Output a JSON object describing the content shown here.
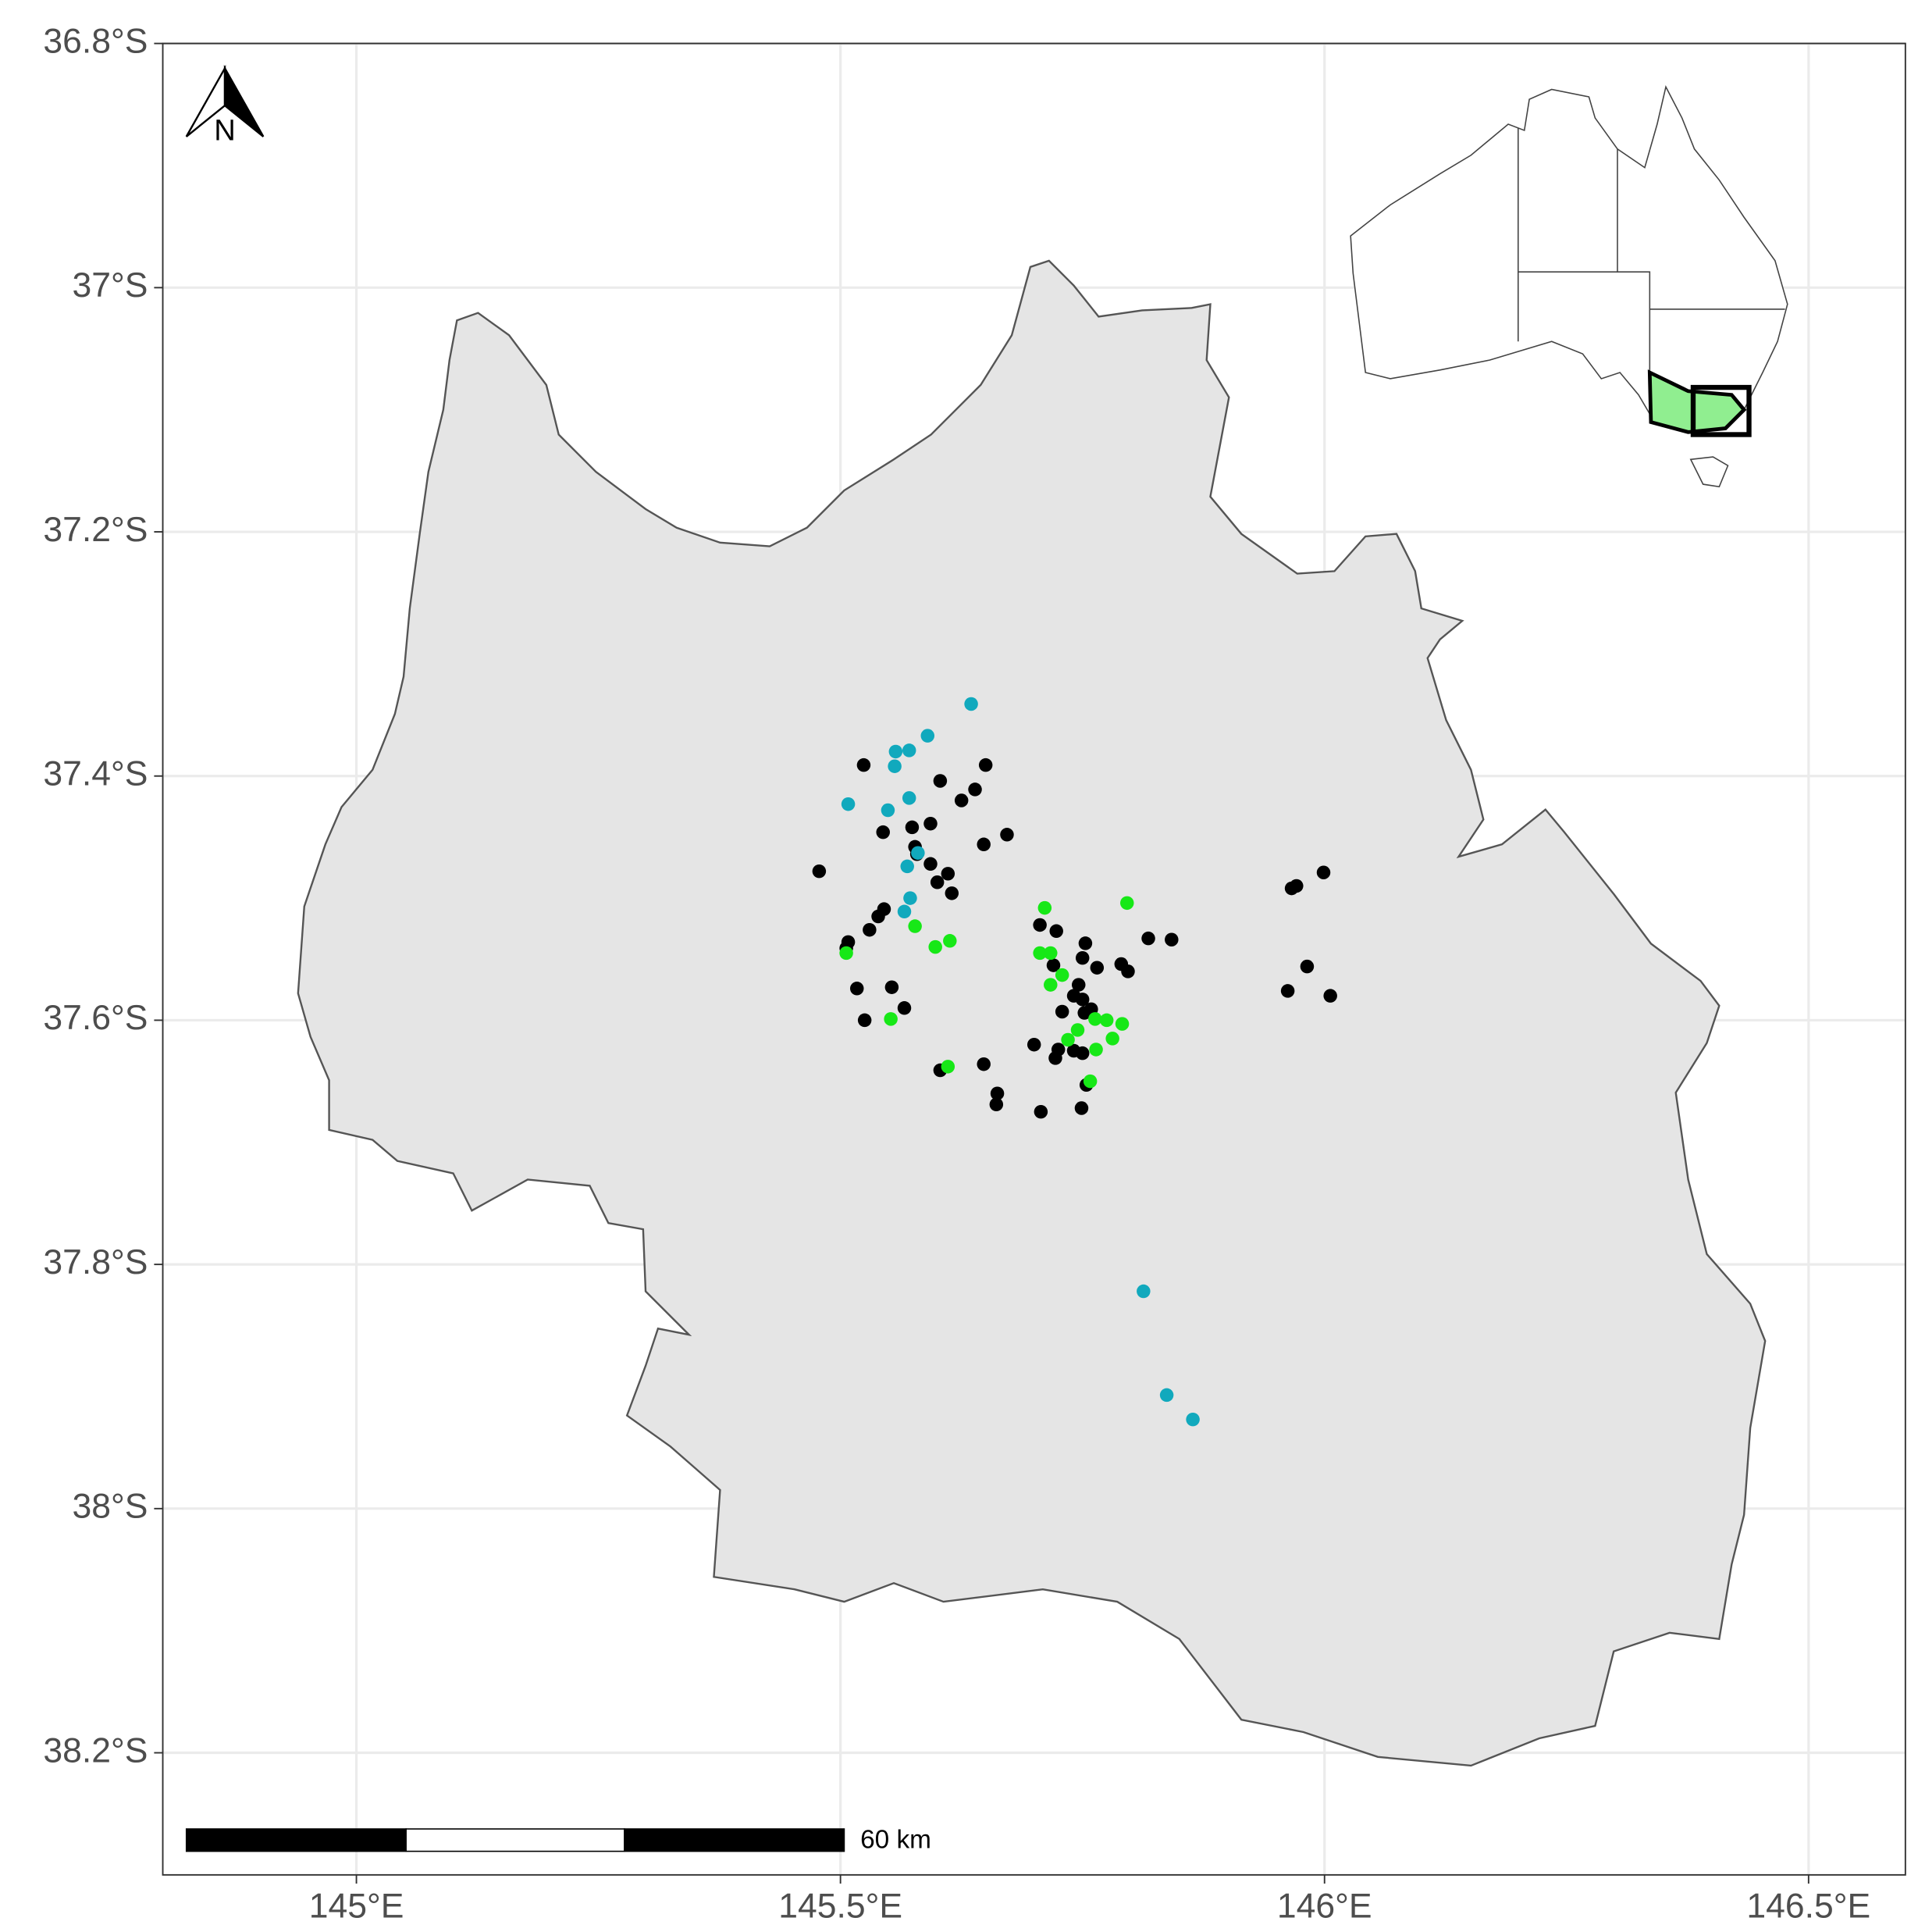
{
  "chart_data": {
    "type": "scatter",
    "xlim": [
      144.8,
      146.6
    ],
    "ylim": [
      -38.3,
      -36.8
    ],
    "xticks": [
      {
        "value": 145,
        "label": "145°E"
      },
      {
        "value": 145.5,
        "label": "145.5°E"
      },
      {
        "value": 146,
        "label": "146°E"
      },
      {
        "value": 146.5,
        "label": "146.5°E"
      }
    ],
    "yticks": [
      {
        "value": -36.8,
        "label": "36.8°S"
      },
      {
        "value": -37,
        "label": "37°S"
      },
      {
        "value": -37.2,
        "label": "37.2°S"
      },
      {
        "value": -37.4,
        "label": "37.4°S"
      },
      {
        "value": -37.6,
        "label": "37.6°S"
      },
      {
        "value": -37.8,
        "label": "37.8°S"
      },
      {
        "value": -38,
        "label": "38°S"
      },
      {
        "value": -38.2,
        "label": "38.2°S"
      }
    ],
    "grid": true,
    "annotations": {
      "north": "N",
      "scale_bar": "60 km"
    },
    "series": [
      {
        "color": "#000000",
        "x": [
          145.524,
          145.65,
          145.603,
          145.639,
          145.625,
          145.593,
          145.574,
          145.544,
          145.672,
          145.577,
          145.648,
          145.579,
          145.593,
          145.478,
          145.611,
          145.6,
          145.615,
          145.999,
          145.971,
          145.966,
          145.545,
          145.539,
          145.53,
          145.706,
          145.723,
          145.508,
          145.818,
          145.842,
          145.506,
          145.753,
          145.75,
          145.72,
          145.79,
          145.765,
          145.797,
          145.982,
          145.746,
          145.517,
          145.553,
          145.962,
          145.741,
          146.006,
          145.75,
          145.566,
          145.729,
          145.759,
          145.752,
          145.525,
          145.7,
          145.725,
          145.741,
          145.75,
          145.722,
          145.648,
          145.603,
          145.754,
          145.662,
          145.661,
          145.749,
          145.707
        ],
        "values": [
          -37.391,
          -37.391,
          -37.404,
          -37.411,
          -37.42,
          -37.439,
          -37.442,
          -37.446,
          -37.448,
          -37.458,
          -37.456,
          -37.464,
          -37.472,
          -37.478,
          -37.48,
          -37.487,
          -37.496,
          -37.479,
          -37.49,
          -37.492,
          -37.509,
          -37.515,
          -37.526,
          -37.522,
          -37.527,
          -37.536,
          -37.533,
          -37.534,
          -37.541,
          -37.537,
          -37.549,
          -37.555,
          -37.554,
          -37.557,
          -37.56,
          -37.556,
          -37.571,
          -37.574,
          -37.573,
          -37.576,
          -37.58,
          -37.58,
          -37.583,
          -37.59,
          -37.593,
          -37.591,
          -37.594,
          -37.6,
          -37.62,
          -37.624,
          -37.625,
          -37.627,
          -37.631,
          -37.636,
          -37.641,
          -37.653,
          -37.66,
          -37.669,
          -37.672,
          -37.675
        ]
      },
      {
        "color": "#11a9bd",
        "x": [
          145.635,
          145.59,
          145.557,
          145.571,
          145.556,
          145.508,
          145.549,
          145.571,
          145.58,
          145.569,
          145.572,
          145.566,
          145.813,
          145.837,
          145.864
        ],
        "values": [
          -37.341,
          -37.367,
          -37.38,
          -37.379,
          -37.392,
          -37.423,
          -37.428,
          -37.418,
          -37.463,
          -37.474,
          -37.5,
          -37.511,
          -37.822,
          -37.907,
          -37.927
        ]
      },
      {
        "color": "#17e817",
        "x": [
          145.711,
          145.796,
          145.577,
          145.613,
          145.598,
          145.506,
          145.706,
          145.717,
          145.729,
          145.717,
          145.552,
          145.763,
          145.775,
          145.791,
          145.745,
          145.781,
          145.735,
          145.764,
          145.611,
          145.758
        ],
        "values": [
          -37.508,
          -37.504,
          -37.523,
          -37.535,
          -37.54,
          -37.545,
          -37.545,
          -37.545,
          -37.563,
          -37.571,
          -37.599,
          -37.599,
          -37.6,
          -37.603,
          -37.608,
          -37.615,
          -37.616,
          -37.624,
          -37.638,
          -37.65
        ]
      }
    ]
  }
}
